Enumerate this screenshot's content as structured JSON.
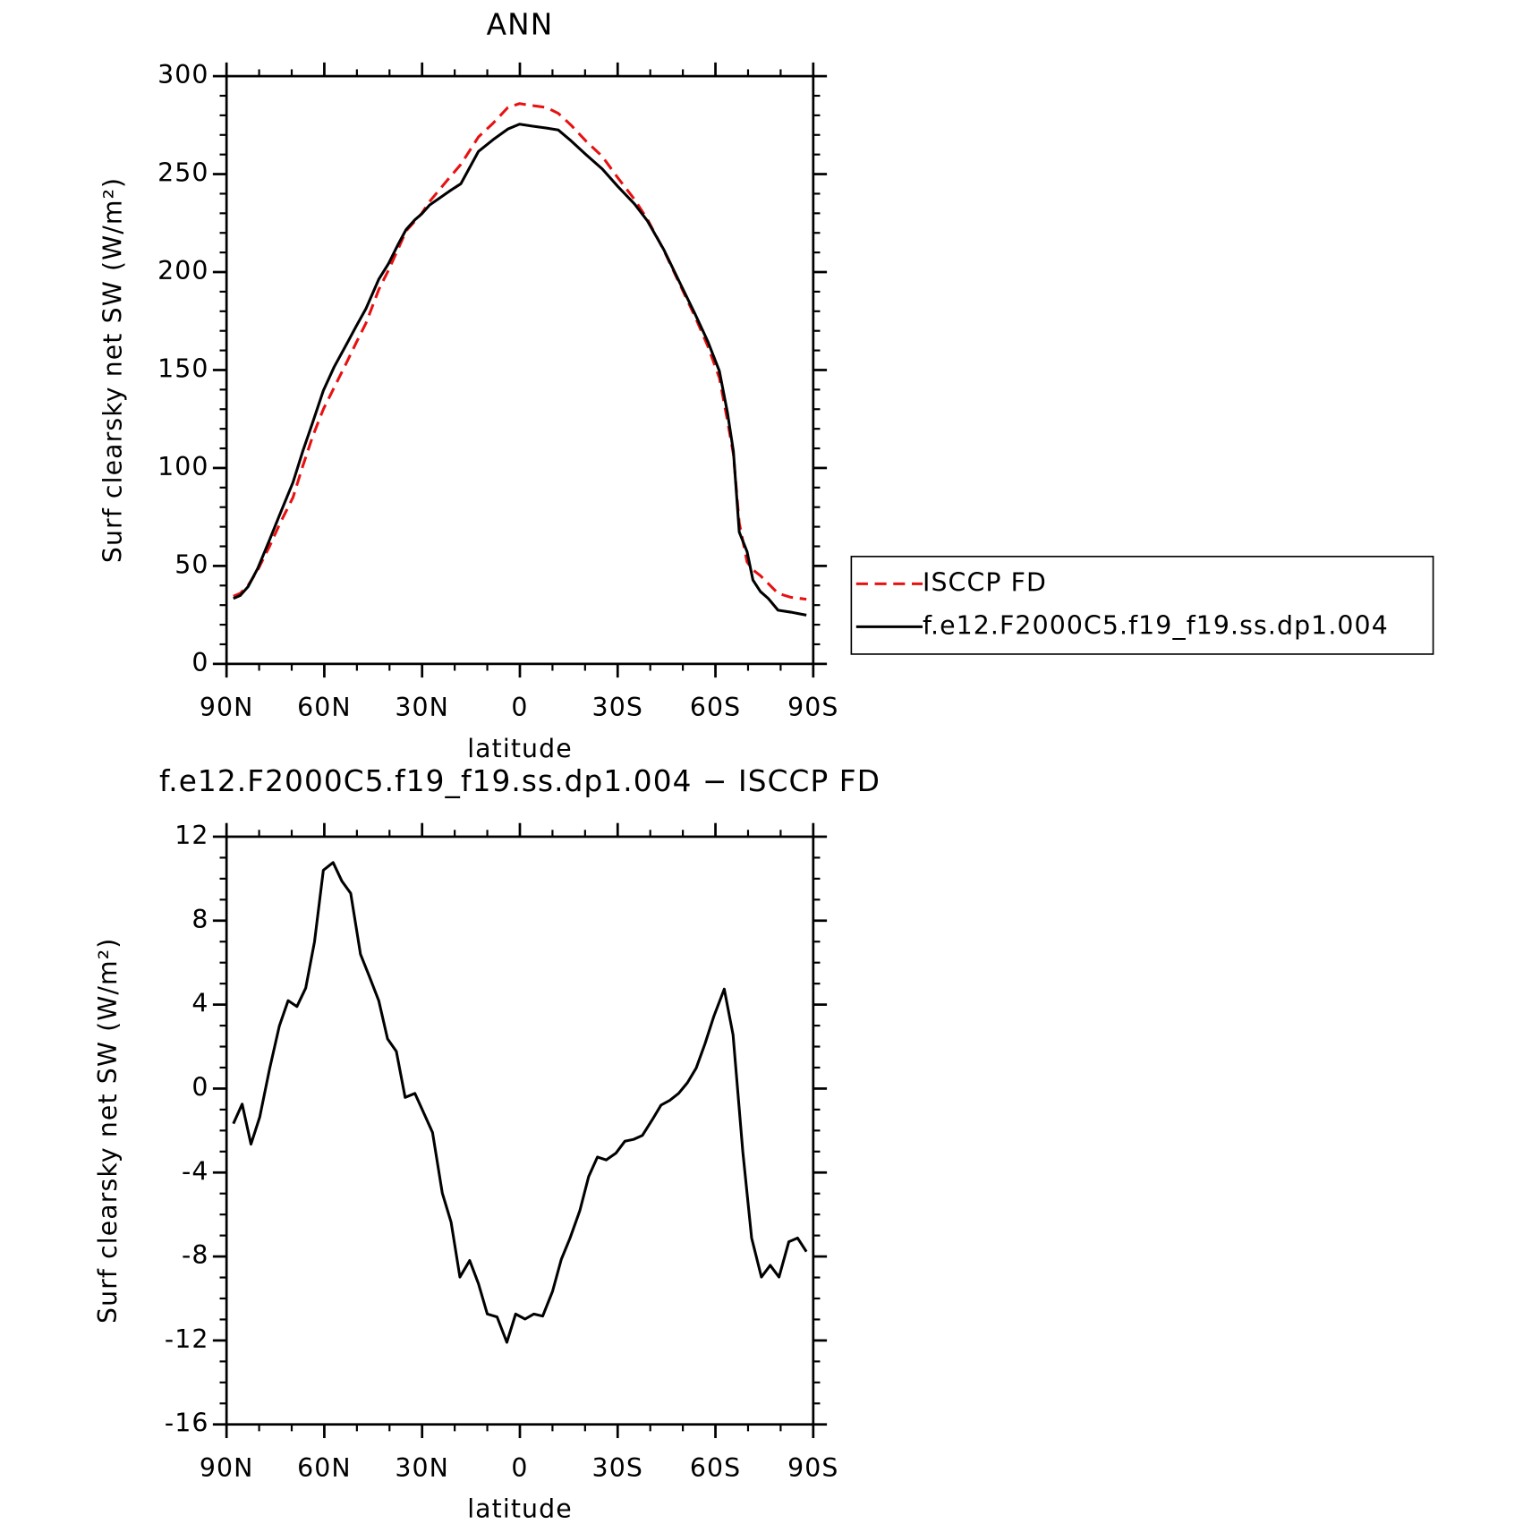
{
  "chart_data": [
    {
      "type": "line",
      "title": "ANN",
      "xlabel": "latitude",
      "ylabel": "Surf clearsky net SW (W/m²)",
      "x": [
        87.9,
        85.8,
        83.4,
        80.4,
        76.8,
        73.8,
        69.6,
        66.6,
        63.6,
        60.3,
        57.0,
        53.1,
        50.2,
        47.2,
        43.3,
        40.3,
        37.3,
        34.9,
        32.2,
        30.1,
        27.7,
        24.7,
        21.7,
        18.1,
        12.7,
        8.2,
        3.7,
        0.1,
        -3.7,
        -8.2,
        -11.8,
        -15.7,
        -20.2,
        -25.3,
        -30.1,
        -35.2,
        -39.1,
        -44.2,
        -48.7,
        -53.8,
        -57.7,
        -61.2,
        -63.7,
        -65.5,
        -67.3,
        -69.7,
        -71.5,
        -73.8,
        -76.2,
        -79.2,
        -83.1,
        -87.9
      ],
      "series": [
        {
          "name": "ISCCP FD",
          "color": "#e81010",
          "dashed": true,
          "values": [
            34.5,
            36,
            40,
            48,
            60,
            71,
            85,
            101,
            116,
            130,
            141,
            154,
            164,
            174,
            191,
            201,
            212,
            221,
            226,
            230,
            236,
            242,
            248,
            255,
            269,
            276,
            284,
            286,
            285,
            284,
            281,
            275,
            267,
            259,
            248,
            237,
            227,
            211,
            195,
            177,
            162,
            146,
            124,
            107,
            72,
            52,
            48,
            45,
            41,
            36,
            34,
            33
          ]
        },
        {
          "name": "f.e12.F2000C5.f19_f19.ss.dp1.004",
          "color": "#000000",
          "dashed": false,
          "values": [
            33.4,
            34.9,
            39.4,
            48.8,
            63.3,
            75.7,
            92.7,
            108.6,
            123.1,
            139.5,
            151.5,
            163.4,
            172.4,
            181.4,
            196.3,
            204.3,
            214.3,
            221.7,
            226.7,
            229.7,
            234.2,
            237.7,
            241.2,
            245.1,
            261.6,
            267.6,
            273.0,
            275.5,
            274.5,
            273.5,
            272.5,
            267.0,
            260.1,
            252.6,
            243.6,
            234.7,
            226.2,
            211.3,
            195.8,
            178.4,
            164.4,
            149.5,
            128.1,
            108.6,
            67.3,
            57.3,
            42.8,
            36.9,
            33.4,
            27.4,
            26.4,
            24.9
          ]
        }
      ],
      "xlim": [
        90,
        -90
      ],
      "xticks": [
        {
          "value": 90,
          "label": "90N"
        },
        {
          "value": 60,
          "label": "60N"
        },
        {
          "value": 30,
          "label": "30N"
        },
        0,
        {
          "value": -30,
          "label": "30S"
        },
        {
          "value": -60,
          "label": "60S"
        },
        {
          "value": -90,
          "label": "90S"
        }
      ],
      "ylim": [
        0,
        300
      ],
      "yticks": [
        0,
        50,
        100,
        150,
        200,
        250,
        300
      ],
      "legend": "right"
    },
    {
      "type": "line",
      "title": "f.e12.F2000C5.f19_f19.ss.dp1.004 − ISCCP FD",
      "xlabel": "latitude",
      "ylabel": "Surf clearsky net SW (W/m²)",
      "x": [
        87.9,
        85.2,
        82.5,
        79.8,
        76.8,
        73.8,
        71.1,
        68.4,
        65.7,
        63.0,
        60.3,
        57.3,
        54.6,
        51.9,
        48.9,
        46.2,
        43.3,
        40.6,
        37.9,
        35.2,
        32.2,
        29.5,
        26.8,
        23.8,
        21.1,
        18.4,
        15.4,
        12.7,
        10.0,
        7.0,
        4.0,
        1.3,
        -1.6,
        -4.3,
        -7.0,
        -10.0,
        -12.7,
        -15.4,
        -18.4,
        -21.1,
        -23.8,
        -26.5,
        -29.5,
        -32.2,
        -34.9,
        -37.6,
        -40.6,
        -43.3,
        -46.0,
        -48.7,
        -51.4,
        -54.1,
        -56.8,
        -59.5,
        -62.7,
        -65.4,
        -68.4,
        -71.1,
        -74.1,
        -76.8,
        -79.5,
        -82.5,
        -85.2,
        -87.9
      ],
      "series": [
        {
          "color": "#000000",
          "dashed": false,
          "values": [
            -1.67,
            -0.74,
            -2.65,
            -1.35,
            0.93,
            2.98,
            4.19,
            3.91,
            4.79,
            7.0,
            10.4,
            10.77,
            9.88,
            9.3,
            6.4,
            5.35,
            4.19,
            2.37,
            1.77,
            -0.42,
            -0.23,
            -1.16,
            -2.09,
            -4.98,
            -6.37,
            -8.98,
            -8.19,
            -9.3,
            -10.74,
            -10.88,
            -12.09,
            -10.74,
            -10.98,
            -10.74,
            -10.84,
            -9.67,
            -8.14,
            -7.12,
            -5.81,
            -4.19,
            -3.26,
            -3.4,
            -3.07,
            -2.51,
            -2.42,
            -2.23,
            -1.49,
            -0.79,
            -0.56,
            -0.23,
            0.28,
            0.98,
            2.14,
            3.44,
            4.74,
            2.56,
            -3.02,
            -7.12,
            -8.98,
            -8.42,
            -8.98,
            -7.3,
            -7.12,
            -7.77
          ]
        }
      ],
      "xlim": [
        90,
        -90
      ],
      "xticks": [
        {
          "value": 90,
          "label": "90N"
        },
        {
          "value": 60,
          "label": "60N"
        },
        {
          "value": 30,
          "label": "30N"
        },
        0,
        {
          "value": -30,
          "label": "30S"
        },
        {
          "value": -60,
          "label": "60S"
        },
        {
          "value": -90,
          "label": "90S"
        }
      ],
      "ylim": [
        -16,
        12
      ],
      "yticks": [
        -16,
        -12,
        -8,
        -4,
        0,
        4,
        8,
        12
      ]
    }
  ]
}
